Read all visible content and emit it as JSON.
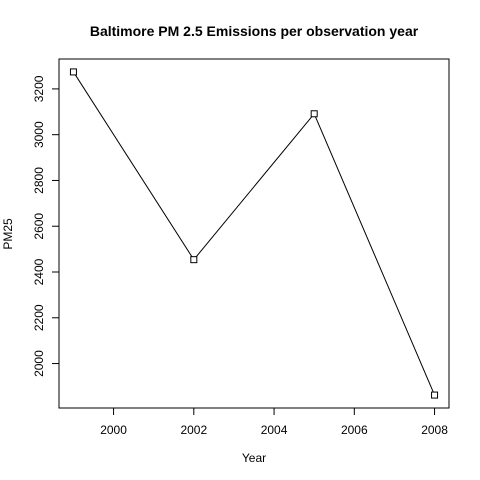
{
  "chart_data": {
    "type": "line",
    "title": "Baltimore PM 2.5 Emissions per observation year",
    "xlabel": "Year",
    "ylabel": "PM25",
    "x": [
      1999,
      2002,
      2005,
      2008
    ],
    "series": [
      {
        "values": [
          3274.18,
          2453.92,
          3091.35,
          1862.28
        ]
      }
    ],
    "xlim": [
      1999,
      2008
    ],
    "ylim": [
      1862.28,
      3274.18
    ],
    "xticks": [
      2000,
      2002,
      2004,
      2006,
      2008
    ],
    "yticks": [
      2000,
      2200,
      2400,
      2600,
      2800,
      3000,
      3200
    ],
    "grid": false,
    "legend": "none",
    "marker": "open-square",
    "line_color": "#000000"
  }
}
